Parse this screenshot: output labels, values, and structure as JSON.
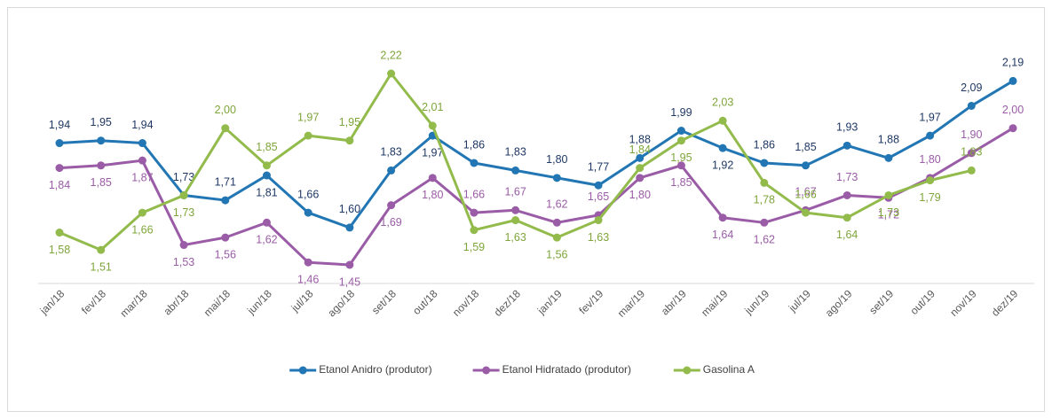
{
  "chart_data": {
    "type": "line",
    "categories": [
      "jan/18",
      "fev/18",
      "mar/18",
      "abr/18",
      "mai/18",
      "jun/18",
      "jul/18",
      "ago/18",
      "set/18",
      "out/18",
      "nov/18",
      "dez/18",
      "jan/19",
      "fev/19",
      "mar/19",
      "abr/19",
      "mai/19",
      "jun/19",
      "jul/19",
      "ago/19",
      "set/19",
      "out/19",
      "nov/19",
      "dez/19"
    ],
    "series": [
      {
        "name": "Etanol Anidro (produtor)",
        "color": "#2176b3",
        "label_color": "#1f3864",
        "values": [
          1.94,
          1.95,
          1.94,
          1.73,
          1.71,
          1.81,
          1.66,
          1.6,
          1.83,
          1.97,
          1.86,
          1.83,
          1.8,
          1.77,
          1.88,
          1.99,
          1.92,
          1.86,
          1.85,
          1.93,
          1.88,
          1.97,
          2.09,
          2.19
        ],
        "value_labels": [
          "1,94",
          "1,95",
          "1,94",
          "1,73",
          "1,71",
          "1,81",
          "1,66",
          "1,60",
          "1,83",
          "1,97",
          "1,86",
          "1,83",
          "1,80",
          "1,77",
          "1,88",
          "1,99",
          "1,92",
          "1,86",
          "1,85",
          "1,93",
          "1,88",
          "1,97",
          "2,09",
          "2,19"
        ]
      },
      {
        "name": "Etanol Hidratado (produtor)",
        "color": "#9a5ca6",
        "label_color": "#9a5ca6",
        "values": [
          1.84,
          1.85,
          1.87,
          1.53,
          1.56,
          1.62,
          1.46,
          1.45,
          1.69,
          1.8,
          1.66,
          1.67,
          1.62,
          1.65,
          1.8,
          1.85,
          1.64,
          1.62,
          1.67,
          1.73,
          1.72,
          1.8,
          1.9,
          2.0
        ],
        "value_labels": [
          "1,84",
          "1,85",
          "1,87",
          "1,53",
          "1,56",
          "1,62",
          "1,46",
          "1,45",
          "1,69",
          "1,80",
          "1,66",
          "1,67",
          "1,62",
          "1,65",
          "1,80",
          "1,85",
          "1,64",
          "1,62",
          "1,67",
          "1,73",
          "1,72",
          "1,80",
          "1,90",
          "2,00"
        ]
      },
      {
        "name": "Gasolina A",
        "color": "#92bb4c",
        "label_color": "#7ea53a",
        "values": [
          1.58,
          1.51,
          1.66,
          1.73,
          2.0,
          1.85,
          1.97,
          1.95,
          2.22,
          2.01,
          1.59,
          1.63,
          1.56,
          1.63,
          1.84,
          1.95,
          2.03,
          1.78,
          1.66,
          1.64,
          1.73,
          1.79,
          1.83,
          null
        ],
        "value_labels": [
          "1,58",
          "1,51",
          "1,66",
          "1,73",
          "2,00",
          "1,85",
          "1,97",
          "1,95",
          "2,22",
          "2,01",
          "1,59",
          "1,63",
          "1,56",
          "1,63",
          "1,84",
          "1,95",
          "2,03",
          "1,78",
          "1,66",
          "1,64",
          "1,73",
          "1,79",
          "1,83",
          null
        ]
      }
    ],
    "legend": "bottom"
  }
}
